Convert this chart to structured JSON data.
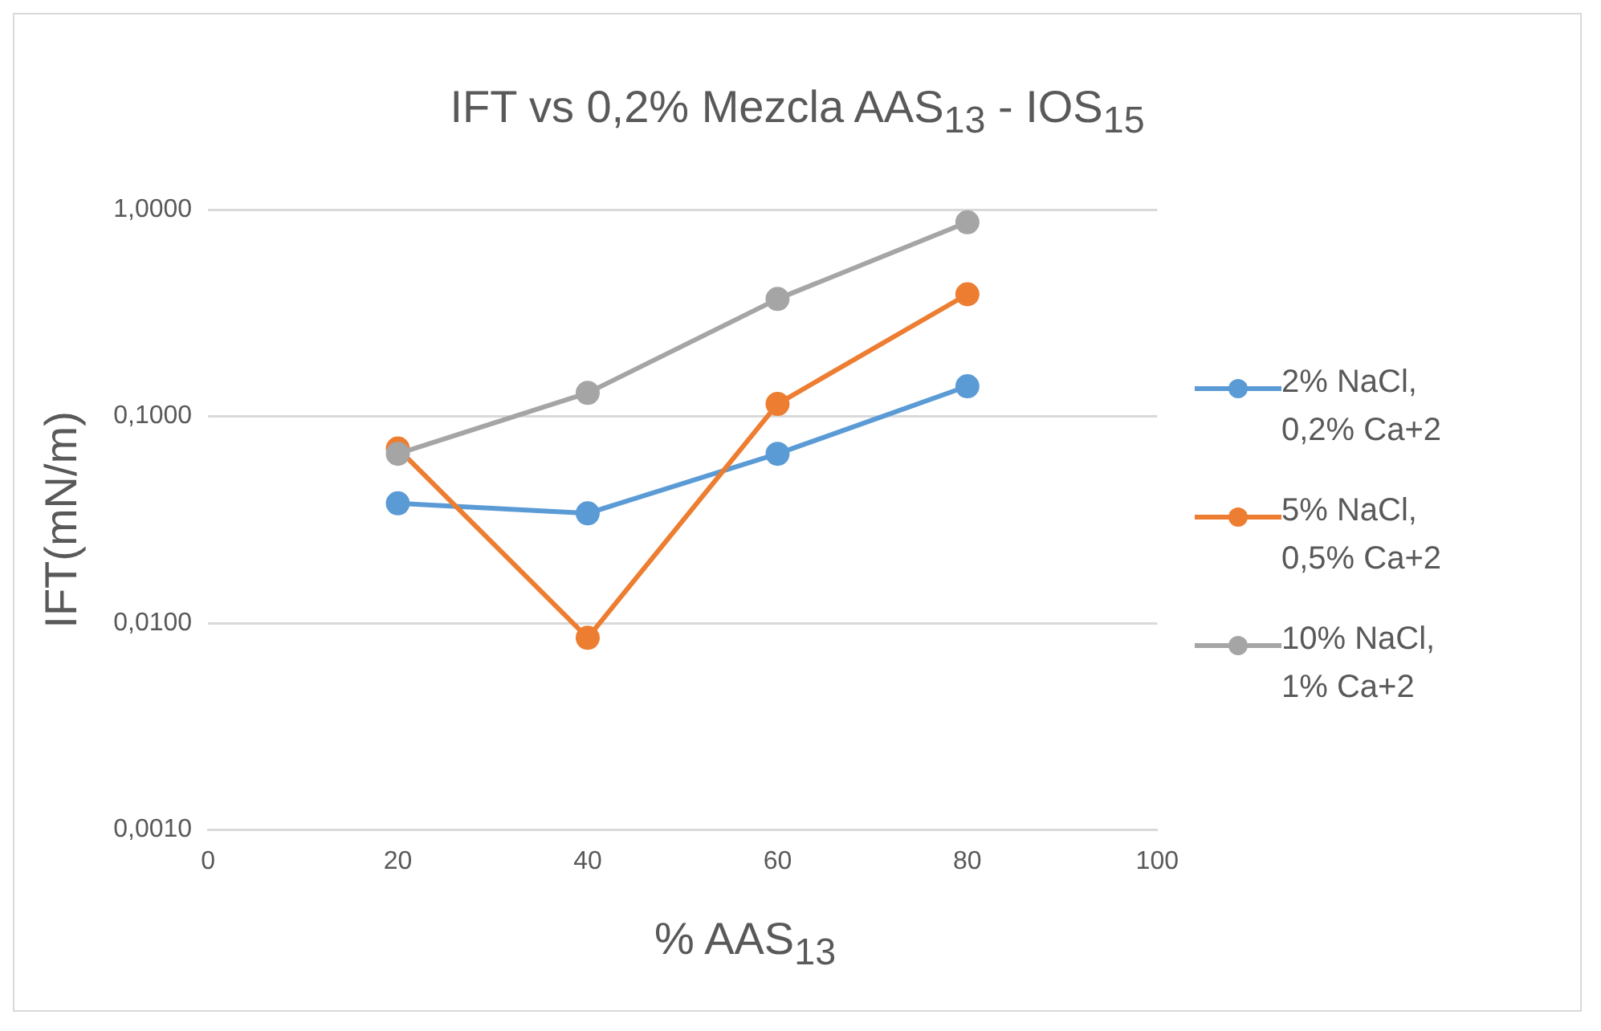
{
  "chart_data": {
    "type": "line",
    "title": "IFT vs 0,2% Mezcla AAS$_{13}$ - IOS$_{15}$",
    "xlabel": "% AAS$_{13}$",
    "ylabel": "IFT(mN/m)",
    "x": [
      20,
      40,
      60,
      80
    ],
    "series": [
      {
        "name": "2% NaCl, 0,2% Ca+2",
        "color": "#5b9bd5",
        "values": [
          0.038,
          0.034,
          0.066,
          0.14
        ]
      },
      {
        "name": "5% NaCl, 0,5% Ca+2",
        "color": "#ed7d31",
        "values": [
          0.07,
          0.0085,
          0.115,
          0.39
        ]
      },
      {
        "name": "10% NaCl, 1% Ca+2",
        "color": "#a5a5a5",
        "values": [
          0.066,
          0.13,
          0.37,
          0.87
        ]
      }
    ],
    "xlim": [
      0,
      100
    ],
    "xticks": [
      0,
      20,
      40,
      60,
      80,
      100
    ],
    "ylim": [
      0.001,
      1
    ],
    "yticks": [
      {
        "value": 0.001,
        "label": "0,0010"
      },
      {
        "value": 0.01,
        "label": "0,0100"
      },
      {
        "value": 0.1,
        "label": "0,1000"
      },
      {
        "value": 1,
        "label": "1,0000"
      }
    ],
    "log": "y",
    "grid": "y",
    "legend": "right",
    "marker": "circle",
    "line_style": "solid"
  }
}
